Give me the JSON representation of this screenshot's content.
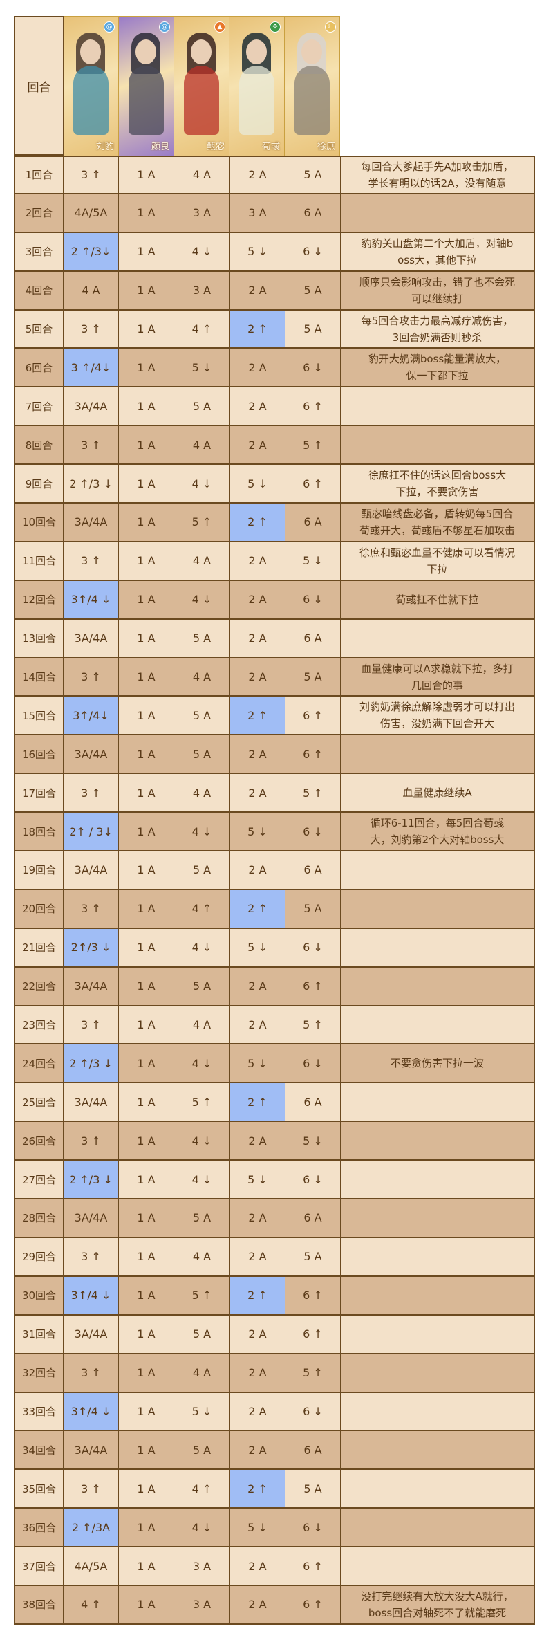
{
  "colors": {
    "light_row": "#f3e1c9",
    "dark_row": "#d9b896",
    "highlight": "#a0bdf5",
    "border": "#6b4a20",
    "text": "#5a3a18"
  },
  "header": {
    "round_label": "回合",
    "characters": [
      {
        "name": "刘豹",
        "element_icon": "water-swirl-icon",
        "element_color": "#5aa8e0",
        "card_color": "#e8c278",
        "hair": "#4a3a30",
        "robe": "#3f8ea8"
      },
      {
        "name": "颜良",
        "element_icon": "water-swirl-icon",
        "element_color": "#5aa8e0",
        "card_color": "#9a7cc8",
        "hair": "#2a2a36",
        "robe": "#4a4a58"
      },
      {
        "name": "甄宓",
        "element_icon": "fire-icon",
        "element_color": "#e8762a",
        "card_color": "#e8c278",
        "hair": "#3a2420",
        "robe": "#b83028"
      },
      {
        "name": "荀彧",
        "element_icon": "wind-leaf-icon",
        "element_color": "#3c9a48",
        "card_color": "#e8c278",
        "hair": "#1e2e34",
        "robe": "#e8ead8"
      },
      {
        "name": "徐庶",
        "element_icon": "moon-icon",
        "element_color": "#e8c060",
        "card_color": "#e8c278",
        "hair": "#d8d4d0",
        "robe": "#8a8276"
      }
    ]
  },
  "rows": [
    {
      "round": "1回合",
      "cells": [
        "3 ↑",
        "1 A",
        "4 A",
        "2 A",
        "5 A"
      ],
      "blue": [],
      "note": "每回合大爹起手先A加攻击加盾，\n学长有明以的话2A，没有随意"
    },
    {
      "round": "2回合",
      "cells": [
        "4A/5A",
        "1 A",
        "3 A",
        "3 A",
        "6 A"
      ],
      "blue": [],
      "note": ""
    },
    {
      "round": "3回合",
      "cells": [
        "2 ↑/3↓",
        "1 A",
        "4 ↓",
        "5 ↓",
        "6 ↓"
      ],
      "blue": [
        0
      ],
      "note": "豹豹关山盘第二个大加盾，对轴b\noss大，其他下拉"
    },
    {
      "round": "4回合",
      "cells": [
        "4 A",
        "1 A",
        "3 A",
        "2 A",
        "5 A"
      ],
      "blue": [],
      "note": "顺序只会影响攻击，错了也不会死\n可以继续打"
    },
    {
      "round": "5回合",
      "cells": [
        "3 ↑",
        "1 A",
        "4 ↑",
        "2 ↑",
        "5 A"
      ],
      "blue": [
        3
      ],
      "note": "每5回合攻击力最高减疗减伤害，\n3回合奶满否则秒杀"
    },
    {
      "round": "6回合",
      "cells": [
        "3 ↑/4↓",
        "1 A",
        "5 ↓",
        "2 A",
        "6 ↓"
      ],
      "blue": [
        0
      ],
      "note": "豹开大奶满boss能量满放大，\n保一下都下拉"
    },
    {
      "round": "7回合",
      "cells": [
        "3A/4A",
        "1 A",
        "5 A",
        "2 A",
        "6 ↑"
      ],
      "blue": [],
      "note": ""
    },
    {
      "round": "8回合",
      "cells": [
        "3 ↑",
        "1 A",
        "4 A",
        "2 A",
        "5 ↑"
      ],
      "blue": [],
      "note": ""
    },
    {
      "round": "9回合",
      "cells": [
        "2 ↑/3 ↓",
        "1 A",
        "4 ↓",
        "5 ↓",
        "6 ↑"
      ],
      "blue": [],
      "note": "徐庶扛不住的话这回合boss大\n下拉，不要贪伤害"
    },
    {
      "round": "10回合",
      "cells": [
        "3A/4A",
        "1 A",
        "5 ↑",
        "2 ↑",
        "6 A"
      ],
      "blue": [
        3
      ],
      "note": "甄宓暗线盘必备，盾转奶每5回合\n荀彧开大，荀彧盾不够星石加攻击"
    },
    {
      "round": "11回合",
      "cells": [
        "3 ↑",
        "1 A",
        "4 A",
        "2 A",
        "5 ↓"
      ],
      "blue": [],
      "note": "徐庶和甄宓血量不健康可以看情况\n下拉"
    },
    {
      "round": "12回合",
      "cells": [
        "3↑/4 ↓",
        "1 A",
        "4 ↓",
        "2 A",
        "6 ↓"
      ],
      "blue": [
        0
      ],
      "note": "荀彧扛不住就下拉"
    },
    {
      "round": "13回合",
      "cells": [
        "3A/4A",
        "1 A",
        "5 A",
        "2 A",
        "6 A"
      ],
      "blue": [],
      "note": ""
    },
    {
      "round": "14回合",
      "cells": [
        "3 ↑",
        "1 A",
        "4 A",
        "2 A",
        "5 A"
      ],
      "blue": [],
      "note": "血量健康可以A求稳就下拉，多打\n几回合的事"
    },
    {
      "round": "15回合",
      "cells": [
        "3↑/4↓",
        "1 A",
        "5 A",
        "2 ↑",
        "6 ↑"
      ],
      "blue": [
        0,
        3
      ],
      "note": "刘豹奶满徐庶解除虚弱才可以打出\n伤害，没奶满下回合开大"
    },
    {
      "round": "16回合",
      "cells": [
        "3A/4A",
        "1 A",
        "5 A",
        "2 A",
        "6 ↑"
      ],
      "blue": [],
      "note": ""
    },
    {
      "round": "17回合",
      "cells": [
        "3 ↑",
        "1 A",
        "4 A",
        "2 A",
        "5 ↑"
      ],
      "blue": [],
      "note": "血量健康继续A"
    },
    {
      "round": "18回合",
      "cells": [
        "2↑ / 3↓",
        "1 A",
        "4 ↓",
        "5 ↓",
        "6 ↓"
      ],
      "blue": [
        0
      ],
      "note": "循环6-11回合，每5回合荀彧\n大，刘豹第2个大对轴boss大"
    },
    {
      "round": "19回合",
      "cells": [
        "3A/4A",
        "1 A",
        "5 A",
        "2 A",
        "6 A"
      ],
      "blue": [],
      "note": ""
    },
    {
      "round": "20回合",
      "cells": [
        "3 ↑",
        "1 A",
        "4 ↑",
        "2 ↑",
        "5 A"
      ],
      "blue": [
        3
      ],
      "note": ""
    },
    {
      "round": "21回合",
      "cells": [
        "2↑/3 ↓",
        "1 A",
        "4 ↓",
        "5 ↓",
        "6 ↓"
      ],
      "blue": [
        0
      ],
      "note": ""
    },
    {
      "round": "22回合",
      "cells": [
        "3A/4A",
        "1 A",
        "5 A",
        "2 A",
        "6 ↑"
      ],
      "blue": [],
      "note": ""
    },
    {
      "round": "23回合",
      "cells": [
        "3 ↑",
        "1 A",
        "4 A",
        "2 A",
        "5 ↑"
      ],
      "blue": [],
      "note": ""
    },
    {
      "round": "24回合",
      "cells": [
        "2 ↑/3 ↓",
        "1 A",
        "4 ↓",
        "5 ↓",
        "6 ↓"
      ],
      "blue": [
        0
      ],
      "note": "不要贪伤害下拉一波"
    },
    {
      "round": "25回合",
      "cells": [
        "3A/4A",
        "1 A",
        "5 ↑",
        "2 ↑",
        "6 A"
      ],
      "blue": [
        3
      ],
      "note": ""
    },
    {
      "round": "26回合",
      "cells": [
        "3 ↑",
        "1 A",
        "4 ↓",
        "2 A",
        "5 ↓"
      ],
      "blue": [],
      "note": ""
    },
    {
      "round": "27回合",
      "cells": [
        "2 ↑/3 ↓",
        "1 A",
        "4 ↓",
        "5 ↓",
        "6 ↓"
      ],
      "blue": [
        0
      ],
      "note": ""
    },
    {
      "round": "28回合",
      "cells": [
        "3A/4A",
        "1 A",
        "5 A",
        "2 A",
        "6 A"
      ],
      "blue": [],
      "note": ""
    },
    {
      "round": "29回合",
      "cells": [
        "3 ↑",
        "1 A",
        "4 A",
        "2 A",
        "5 A"
      ],
      "blue": [],
      "note": ""
    },
    {
      "round": "30回合",
      "cells": [
        "3↑/4 ↓",
        "1 A",
        "5 ↑",
        "2 ↑",
        "6 ↑"
      ],
      "blue": [
        0,
        3
      ],
      "note": ""
    },
    {
      "round": "31回合",
      "cells": [
        "3A/4A",
        "1 A",
        "5 A",
        "2 A",
        "6 ↑"
      ],
      "blue": [],
      "note": ""
    },
    {
      "round": "32回合",
      "cells": [
        "3 ↑",
        "1 A",
        "4 A",
        "2 A",
        "5 ↑"
      ],
      "blue": [],
      "note": ""
    },
    {
      "round": "33回合",
      "cells": [
        "3↑/4 ↓",
        "1 A",
        "5 ↓",
        "2 A",
        "6 ↓"
      ],
      "blue": [
        0
      ],
      "note": ""
    },
    {
      "round": "34回合",
      "cells": [
        "3A/4A",
        "1 A",
        "5 A",
        "2 A",
        "6 A"
      ],
      "blue": [],
      "note": ""
    },
    {
      "round": "35回合",
      "cells": [
        "3 ↑",
        "1 A",
        "4 ↑",
        "2 ↑",
        "5 A"
      ],
      "blue": [
        3
      ],
      "note": ""
    },
    {
      "round": "36回合",
      "cells": [
        "2 ↑/3A",
        "1 A",
        "4 ↓",
        "5 ↓",
        "6 ↓"
      ],
      "blue": [
        0
      ],
      "note": ""
    },
    {
      "round": "37回合",
      "cells": [
        "4A/5A",
        "1 A",
        "3 A",
        "2 A",
        "6 ↑"
      ],
      "blue": [],
      "note": ""
    },
    {
      "round": "38回合",
      "cells": [
        "4 ↑",
        "1 A",
        "3 A",
        "2 A",
        "6 ↑"
      ],
      "blue": [],
      "note": "没打完继续有大放大没大A就行，\nboss回合对轴死不了就能磨死"
    }
  ]
}
